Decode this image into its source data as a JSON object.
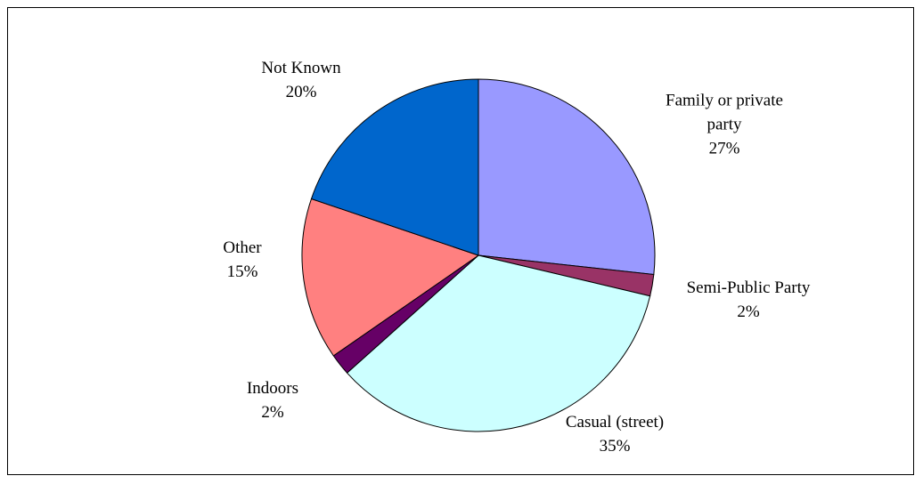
{
  "chart_data": {
    "type": "pie",
    "categories": [
      "Family or private party",
      "Semi-Public Party",
      "Casual (street)",
      "Indoors",
      "Other",
      "Not Known"
    ],
    "values": [
      27,
      2,
      35,
      2,
      15,
      20
    ],
    "value_labels": [
      "27%",
      "2%",
      "35%",
      "2%",
      "15%",
      "20%"
    ],
    "colors": [
      "#9999ff",
      "#993366",
      "#ccffff",
      "#660066",
      "#ff8080",
      "#0066cc"
    ]
  }
}
